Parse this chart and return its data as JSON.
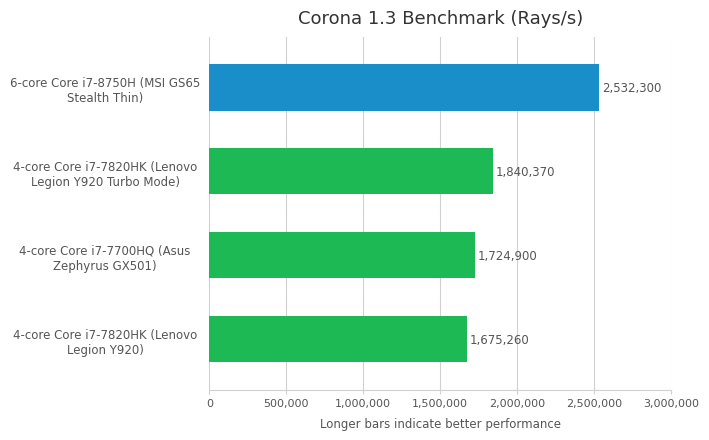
{
  "title": "Corona 1.3 Benchmark (Rays/s)",
  "xlabel": "Longer bars indicate better performance",
  "categories": [
    "4-core Core i7-7820HK (Lenovo\nLegion Y920)",
    "4-core Core i7-7700HQ (Asus\nZephyrus GX501)",
    "4-core Core i7-7820HK (Lenovo\nLegion Y920 Turbo Mode)",
    "6-core Core i7-8750H (MSI GS65\nStealth Thin)"
  ],
  "values": [
    1675260,
    1724900,
    1840370,
    2532300
  ],
  "bar_colors": [
    "#1db954",
    "#1db954",
    "#1db954",
    "#1a8ec8"
  ],
  "value_labels": [
    "1,675,260",
    "1,724,900",
    "1,840,370",
    "2,532,300"
  ],
  "xlim": [
    0,
    3000000
  ],
  "xticks": [
    0,
    500000,
    1000000,
    1500000,
    2000000,
    2500000,
    3000000
  ],
  "xtick_labels": [
    "0",
    "500,000",
    "1,000,000",
    "1,500,000",
    "2,000,000",
    "2,500,000",
    "3,000,000"
  ],
  "background_color": "#ffffff",
  "plot_bg_color": "#ffffff",
  "bar_height": 0.55,
  "title_fontsize": 13,
  "label_fontsize": 8.5,
  "tick_fontsize": 8,
  "value_fontsize": 8.5,
  "grid_color": "#d0d0d0",
  "text_color": "#555555"
}
